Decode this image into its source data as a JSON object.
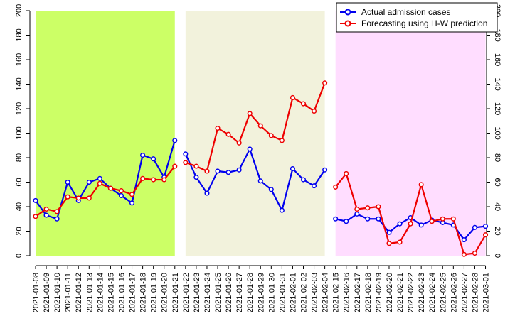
{
  "chart_data": {
    "type": "line",
    "title": "",
    "xlabel": "",
    "ylabel": "",
    "ylim": [
      0,
      200
    ],
    "yticks": [
      0,
      20,
      40,
      60,
      80,
      100,
      120,
      140,
      160,
      180,
      200
    ],
    "y_axis_sides": [
      "left",
      "right"
    ],
    "grid": false,
    "legend_position": "top-right",
    "categories": [
      "2021-01-08",
      "2021-01-09",
      "2021-01-10",
      "2021-01-11",
      "2021-01-12",
      "2021-01-13",
      "2021-01-14",
      "2021-01-15",
      "2021-01-16",
      "2021-01-17",
      "2021-01-18",
      "2021-01-19",
      "2021-01-20",
      "2021-01-21",
      "2021-01-22",
      "2021-01-23",
      "2021-01-24",
      "2021-01-25",
      "2021-01-26",
      "2021-01-27",
      "2021-01-28",
      "2021-01-29",
      "2021-01-30",
      "2021-01-31",
      "2021-02-01",
      "2021-02-02",
      "2021-02-03",
      "2021-02-04",
      "2021-02-15",
      "2021-02-16",
      "2021-02-17",
      "2021-02-18",
      "2021-02-19",
      "2021-02-20",
      "2021-02-21",
      "2021-02-22",
      "2021-02-23",
      "2021-02-24",
      "2021-02-25",
      "2021-02-26",
      "2021-02-27",
      "2021-02-28",
      "2021-03-01"
    ],
    "segments": [
      {
        "start": 0,
        "end": 13,
        "color": "#ccff66"
      },
      {
        "start": 14,
        "end": 27,
        "color": "#f2f2dc"
      },
      {
        "start": 28,
        "end": 42,
        "color": "#ffddff"
      }
    ],
    "series": [
      {
        "name": "Actual admission cases",
        "color": "#0000ee",
        "values": [
          45,
          33,
          30,
          60,
          45,
          60,
          63,
          55,
          49,
          43,
          82,
          79,
          64,
          94,
          83,
          64,
          51,
          69,
          68,
          70,
          87,
          61,
          54,
          37,
          71,
          62,
          57,
          70,
          30,
          28,
          34,
          30,
          30,
          19,
          26,
          31,
          25,
          29,
          27,
          25,
          13,
          23,
          24
        ]
      },
      {
        "name": "Forecasting using H-W prediction",
        "color": "#ee0000",
        "values": [
          32,
          38,
          36,
          48,
          47,
          47,
          59,
          55,
          53,
          50,
          63,
          62,
          62,
          73,
          76,
          73,
          69,
          104,
          99,
          92,
          116,
          106,
          98,
          94,
          129,
          124,
          118,
          141,
          56,
          67,
          38,
          39,
          40,
          10,
          11,
          26,
          58,
          28,
          30,
          30,
          1,
          2,
          17
        ]
      }
    ]
  }
}
